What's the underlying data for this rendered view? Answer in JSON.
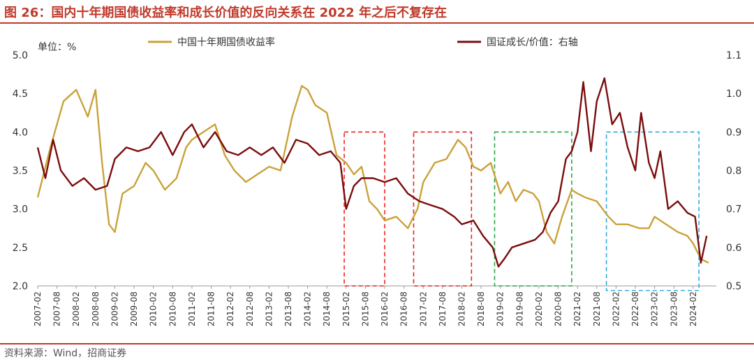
{
  "title": "图 26：国内十年期国债收益率和成长价值的反向关系在 2022 年之后不复存在",
  "source": "资料来源：Wind，招商证券",
  "colors": {
    "accent": "#c0392b",
    "yield": "#c9a23a",
    "ratio": "#7b0c0c",
    "box_red": "#ee2222",
    "box_green": "#22aa44",
    "box_blue": "#33aadd"
  },
  "chart_data": {
    "type": "line",
    "unit_label": "单位：%",
    "legend_position": "top",
    "x_ticks": [
      "2007-02",
      "2007-08",
      "2008-02",
      "2008-08",
      "2009-02",
      "2009-08",
      "2010-02",
      "2010-08",
      "2011-02",
      "2011-08",
      "2012-02",
      "2012-08",
      "2013-02",
      "2013-08",
      "2014-02",
      "2014-08",
      "2015-02",
      "2015-08",
      "2016-02",
      "2016-08",
      "2017-02",
      "2017-08",
      "2018-02",
      "2018-08",
      "2019-02",
      "2019-08",
      "2020-02",
      "2020-08",
      "2021-02",
      "2021-08",
      "2022-02",
      "2022-08",
      "2023-02",
      "2023-08",
      "2024-02"
    ],
    "y_left": {
      "min": 2.0,
      "max": 5.0,
      "ticks": [
        "2.0",
        "2.5",
        "3.0",
        "3.5",
        "4.0",
        "4.5",
        "5.0"
      ]
    },
    "y_right": {
      "min": 0.5,
      "max": 1.1,
      "ticks": [
        "0.5",
        "0.6",
        "0.7",
        "0.8",
        "0.9",
        "1.0",
        "1.1"
      ]
    },
    "series": [
      {
        "name": "中国十年期国债收益率",
        "axis": "left",
        "x": [
          2007.0,
          2007.33,
          2007.67,
          2008.0,
          2008.3,
          2008.5,
          2008.67,
          2008.85,
          2009.0,
          2009.2,
          2009.5,
          2009.8,
          2010.0,
          2010.3,
          2010.6,
          2010.85,
          2011.0,
          2011.3,
          2011.6,
          2011.85,
          2012.1,
          2012.4,
          2012.7,
          2013.0,
          2013.3,
          2013.6,
          2013.85,
          2014.0,
          2014.2,
          2014.5,
          2014.75,
          2015.0,
          2015.2,
          2015.4,
          2015.6,
          2015.8,
          2016.0,
          2016.3,
          2016.6,
          2016.85,
          2017.0,
          2017.3,
          2017.6,
          2017.9,
          2018.1,
          2018.3,
          2018.5,
          2018.75,
          2019.0,
          2019.2,
          2019.4,
          2019.6,
          2019.85,
          2020.0,
          2020.2,
          2020.4,
          2020.6,
          2020.85,
          2021.0,
          2021.2,
          2021.5,
          2021.8,
          2022.0,
          2022.3,
          2022.6,
          2022.85,
          2023.0,
          2023.3,
          2023.6,
          2023.85,
          2024.0,
          2024.2,
          2024.4
        ],
        "values": [
          3.15,
          3.8,
          4.4,
          4.55,
          4.2,
          4.55,
          3.6,
          2.8,
          2.7,
          3.2,
          3.3,
          3.6,
          3.5,
          3.25,
          3.4,
          3.8,
          3.9,
          4.0,
          4.1,
          3.7,
          3.5,
          3.35,
          3.45,
          3.55,
          3.5,
          4.2,
          4.6,
          4.55,
          4.35,
          4.25,
          3.7,
          3.6,
          3.45,
          3.55,
          3.1,
          3.0,
          2.85,
          2.9,
          2.75,
          3.0,
          3.35,
          3.6,
          3.65,
          3.9,
          3.8,
          3.55,
          3.5,
          3.6,
          3.2,
          3.35,
          3.1,
          3.25,
          3.2,
          3.1,
          2.7,
          2.55,
          2.9,
          3.25,
          3.2,
          3.15,
          3.1,
          2.9,
          2.8,
          2.8,
          2.75,
          2.75,
          2.9,
          2.8,
          2.7,
          2.65,
          2.55,
          2.35,
          2.3
        ]
      },
      {
        "name": "国证成长/价值：右轴",
        "axis": "right",
        "x": [
          2007.0,
          2007.2,
          2007.4,
          2007.6,
          2007.9,
          2008.2,
          2008.5,
          2008.8,
          2009.0,
          2009.3,
          2009.6,
          2009.9,
          2010.2,
          2010.5,
          2010.8,
          2011.0,
          2011.3,
          2011.6,
          2011.9,
          2012.2,
          2012.5,
          2012.8,
          2013.1,
          2013.4,
          2013.7,
          2014.0,
          2014.3,
          2014.6,
          2014.85,
          2015.0,
          2015.2,
          2015.4,
          2015.7,
          2016.0,
          2016.3,
          2016.6,
          2016.9,
          2017.2,
          2017.5,
          2017.8,
          2018.0,
          2018.3,
          2018.55,
          2018.8,
          2018.95,
          2019.1,
          2019.3,
          2019.6,
          2019.9,
          2020.1,
          2020.3,
          2020.5,
          2020.7,
          2020.85,
          2021.0,
          2021.15,
          2021.35,
          2021.5,
          2021.7,
          2021.9,
          2022.1,
          2022.3,
          2022.5,
          2022.65,
          2022.85,
          2023.0,
          2023.15,
          2023.35,
          2023.6,
          2023.85,
          2024.05,
          2024.2,
          2024.35
        ],
        "values": [
          0.86,
          0.78,
          0.88,
          0.8,
          0.76,
          0.78,
          0.75,
          0.76,
          0.83,
          0.86,
          0.85,
          0.86,
          0.9,
          0.84,
          0.9,
          0.92,
          0.86,
          0.9,
          0.85,
          0.84,
          0.86,
          0.84,
          0.86,
          0.82,
          0.88,
          0.87,
          0.84,
          0.85,
          0.82,
          0.7,
          0.76,
          0.78,
          0.78,
          0.77,
          0.78,
          0.74,
          0.72,
          0.71,
          0.7,
          0.68,
          0.66,
          0.67,
          0.63,
          0.6,
          0.55,
          0.57,
          0.6,
          0.61,
          0.62,
          0.64,
          0.69,
          0.72,
          0.83,
          0.85,
          0.9,
          1.03,
          0.85,
          0.98,
          1.04,
          0.92,
          0.95,
          0.86,
          0.8,
          0.95,
          0.82,
          0.78,
          0.85,
          0.7,
          0.72,
          0.69,
          0.68,
          0.56,
          0.63
        ]
      }
    ],
    "highlight_boxes": [
      {
        "color": "red",
        "style": "dashed",
        "x_start": 2014.95,
        "x_end": 2016.0,
        "y_top_left": 4.0,
        "y_bottom_left": 2.0
      },
      {
        "color": "red",
        "style": "dashed",
        "x_start": 2016.75,
        "x_end": 2018.25,
        "y_top_left": 4.0,
        "y_bottom_left": 2.0
      },
      {
        "color": "green",
        "style": "dashed",
        "x_start": 2018.85,
        "x_end": 2020.85,
        "y_top_left": 4.0,
        "y_bottom_left": 2.0
      },
      {
        "color": "blue",
        "style": "dashed",
        "x_start": 2021.75,
        "x_end": 2024.15,
        "y_top_left": 4.0,
        "y_bottom_left": 1.94
      }
    ]
  }
}
